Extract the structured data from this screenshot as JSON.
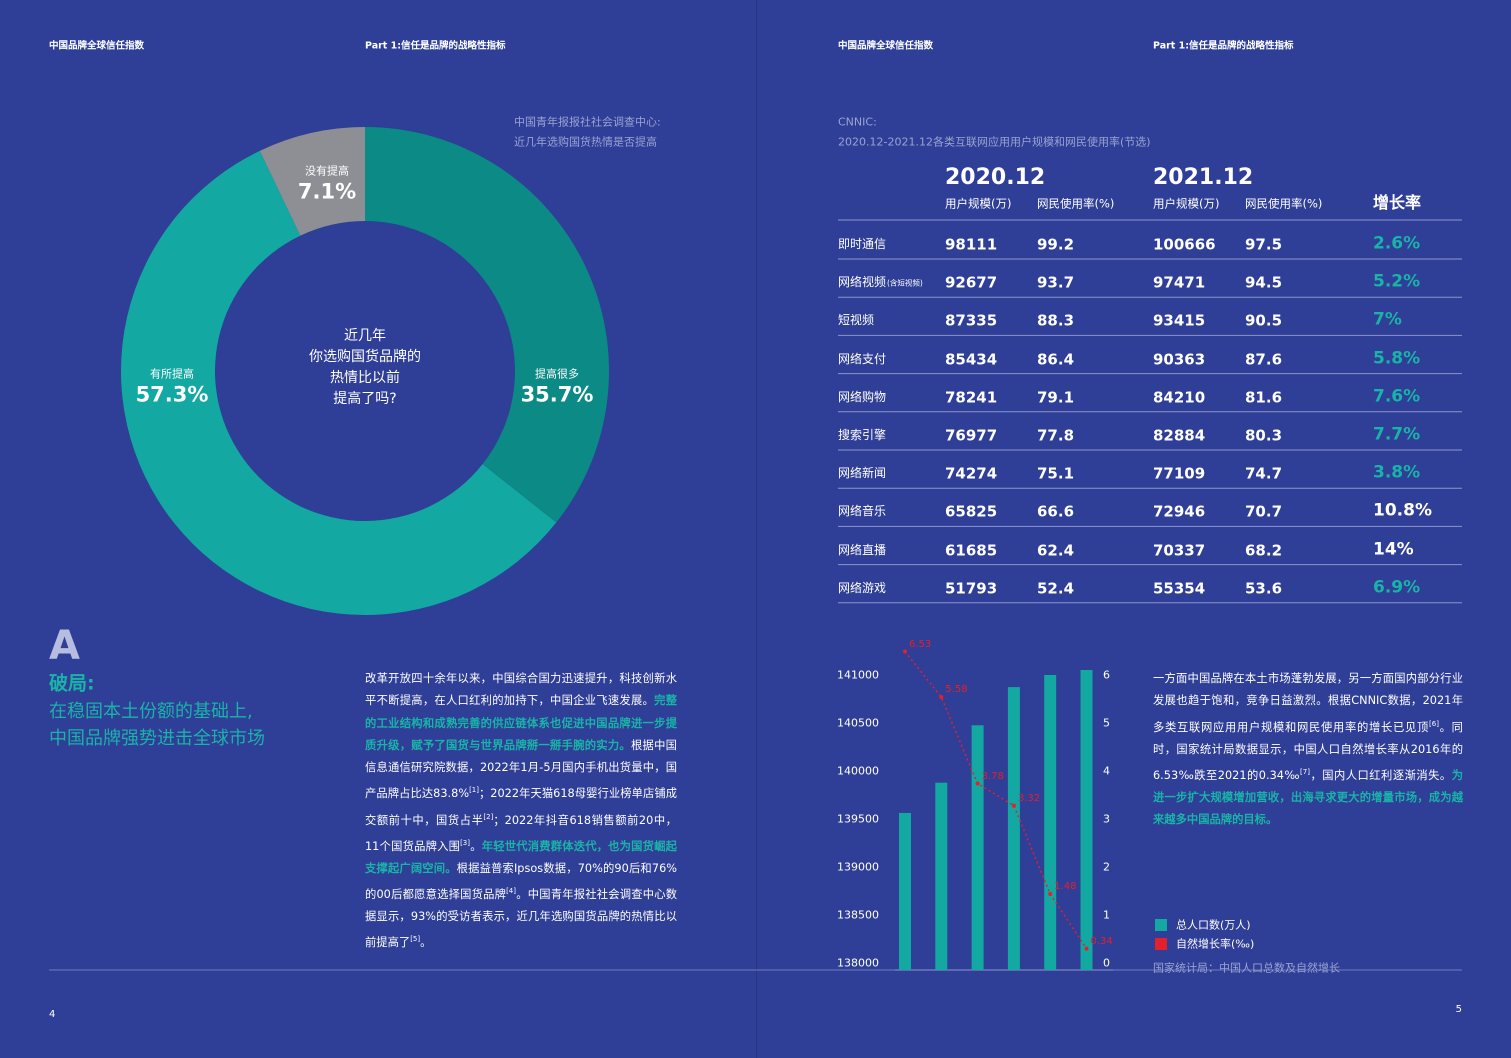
{
  "header": {
    "left": [
      "中国品牌全球信任指数",
      "Part 1:信任是品牌的战略性指标"
    ],
    "right": [
      "中国品牌全球信任指数",
      "Part 1:信任是品牌的战略性指标"
    ]
  },
  "page_numbers": [
    "4",
    "5"
  ],
  "chart_data": [
    {
      "type": "donut",
      "source": [
        "中国青年报报社社会调查中心:",
        "近几年选购国货热情是否提高"
      ],
      "center_text": [
        "近几年",
        "你选购国货品牌的",
        "热情比以前",
        "提高了吗?"
      ],
      "categories": [
        "提高很多",
        "有所提高",
        "没有提高"
      ],
      "values": [
        35.7,
        57.3,
        7.1
      ],
      "value_labels": [
        "35.7%",
        "57.3%",
        "7.1%"
      ],
      "colors": [
        "#0b8a86",
        "#13a8a2",
        "#8e8f94"
      ]
    },
    {
      "type": "bar_line",
      "source": "国家统计局：中国人口总数及自然增长",
      "series": [
        {
          "name": "总人口数(万人)",
          "color": "#13a8a2",
          "type": "bar",
          "values": [
            139584,
            139899,
            140497,
            140895,
            141021,
            141073
          ]
        },
        {
          "name": "自然增长率(‰)",
          "color": "#e3202c",
          "type": "line",
          "axis": "y2",
          "values": [
            6.53,
            5.58,
            3.78,
            3.32,
            1.48,
            0.34
          ]
        }
      ],
      "ylim": [
        138000,
        141000
      ],
      "yticks": [
        138000,
        138500,
        139000,
        139500,
        140000,
        140500,
        141000
      ],
      "y2lim": [
        0,
        6
      ],
      "y2ticks": [
        0,
        1,
        2,
        3,
        4,
        5,
        6
      ]
    }
  ],
  "section": {
    "letter": "A",
    "title": "破局:",
    "subtitle": [
      "在稳固本土份额的基础上,",
      "中国品牌强势进击全球市场"
    ]
  },
  "left_text": [
    {
      "text": "改革开放四十余年以来，中国综合国力迅速提升，科技创新水平不断提高，在人口红利的加持下，中国企业飞速发展。"
    },
    {
      "text": "完整的工业结构和成熟完善的供应链体系也促进中国品牌进一步提质升级，赋予了国货与世界品牌掰一掰手腕的实力。",
      "highlight": true
    },
    {
      "text": "根据中国信息通信研究院数据，2022年1月-5月国内手机出货量中，国产品牌占比达83.8%"
    },
    {
      "text": "[1]",
      "sup": true
    },
    {
      "text": "；2022年天猫618母婴行业榜单店铺成交额前十中，国货占半"
    },
    {
      "text": "[2]",
      "sup": true
    },
    {
      "text": "；2022年抖音618销售额前20中，11个国货品牌入围"
    },
    {
      "text": "[3]",
      "sup": true
    },
    {
      "text": "。"
    },
    {
      "text": "年轻世代消费群体迭代，也为国货崛起支撑起广阔空间。",
      "highlight": true
    },
    {
      "text": "根据益普索Ipsos数据，70%的90后和76%的00后都愿意选择国货品牌"
    },
    {
      "text": "[4]",
      "sup": true
    },
    {
      "text": "。中国青年报社社会调查中心数据显示，93%的受访者表示，近几年选购国货品牌的热情比以前提高了"
    },
    {
      "text": "[5]",
      "sup": true
    },
    {
      "text": "。"
    }
  ],
  "table": {
    "source": [
      "CNNIC:",
      "2020.12-2021.12各类互联网应用用户规模和网民使用率(节选)"
    ],
    "periods": [
      "2020.12",
      "2021.12"
    ],
    "columns": [
      "用户规模(万)",
      "网民使用率(%)",
      "用户规模(万)",
      "网民使用率(%)",
      "增长率"
    ],
    "rows": [
      {
        "name": "即时通信",
        "cells": [
          "98111",
          "99.2",
          "100666",
          "97.5"
        ],
        "growth": "2.6%",
        "growth_color": "#1ab3a8"
      },
      {
        "name": "网络视频",
        "note": "(含短视频)",
        "cells": [
          "92677",
          "93.7",
          "97471",
          "94.5"
        ],
        "growth": "5.2%",
        "growth_color": "#1ab3a8"
      },
      {
        "name": "短视频",
        "cells": [
          "87335",
          "88.3",
          "93415",
          "90.5"
        ],
        "growth": "7%",
        "growth_color": "#1ab3a8"
      },
      {
        "name": "网络支付",
        "cells": [
          "85434",
          "86.4",
          "90363",
          "87.6"
        ],
        "growth": "5.8%",
        "growth_color": "#1ab3a8"
      },
      {
        "name": "网络购物",
        "cells": [
          "78241",
          "79.1",
          "84210",
          "81.6"
        ],
        "growth": "7.6%",
        "growth_color": "#1ab3a8"
      },
      {
        "name": "搜索引擎",
        "cells": [
          "76977",
          "77.8",
          "82884",
          "80.3"
        ],
        "growth": "7.7%",
        "growth_color": "#1ab3a8"
      },
      {
        "name": "网络新闻",
        "cells": [
          "74274",
          "75.1",
          "77109",
          "74.7"
        ],
        "growth": "3.8%",
        "growth_color": "#1ab3a8"
      },
      {
        "name": "网络音乐",
        "cells": [
          "65825",
          "66.6",
          "72946",
          "70.7"
        ],
        "growth": "10.8%",
        "growth_color": "#ffffff"
      },
      {
        "name": "网络直播",
        "cells": [
          "61685",
          "62.4",
          "70337",
          "68.2"
        ],
        "growth": "14%",
        "growth_color": "#ffffff"
      },
      {
        "name": "网络游戏",
        "cells": [
          "51793",
          "52.4",
          "55354",
          "53.6"
        ],
        "growth": "6.9%",
        "growth_color": "#1ab3a8"
      }
    ]
  },
  "right_text": [
    {
      "text": "一方面中国品牌在本土市场蓬勃发展，另一方面国内部分行业发展也趋于饱和，竞争日益激烈。根据CNNIC数据，2021年多类互联网应用用户规模和网民使用率的增长已见顶"
    },
    {
      "text": "[6]",
      "sup": true
    },
    {
      "text": "。同时，国家统计局数据显示，中国人口自然增长率从2016年的6.53‰跌至2021的0.34‰"
    },
    {
      "text": "[7]",
      "sup": true
    },
    {
      "text": "，国内人口红利逐渐消失。"
    },
    {
      "text": "为进一步扩大规模增加营收，出海寻求更大的增量市场，成为越来越多中国品牌的目标。",
      "highlight": true
    }
  ]
}
